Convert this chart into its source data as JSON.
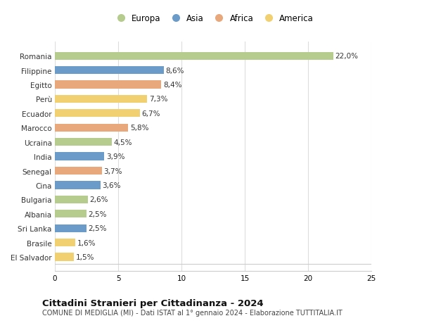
{
  "countries": [
    "Romania",
    "Filippine",
    "Egitto",
    "Perù",
    "Ecuador",
    "Marocco",
    "Ucraina",
    "India",
    "Senegal",
    "Cina",
    "Bulgaria",
    "Albania",
    "Sri Lanka",
    "Brasile",
    "El Salvador"
  ],
  "values": [
    22.0,
    8.6,
    8.4,
    7.3,
    6.7,
    5.8,
    4.5,
    3.9,
    3.7,
    3.6,
    2.6,
    2.5,
    2.5,
    1.6,
    1.5
  ],
  "labels": [
    "22,0%",
    "8,6%",
    "8,4%",
    "7,3%",
    "6,7%",
    "5,8%",
    "4,5%",
    "3,9%",
    "3,7%",
    "3,6%",
    "2,6%",
    "2,5%",
    "2,5%",
    "1,6%",
    "1,5%"
  ],
  "continents": [
    "Europa",
    "Asia",
    "Africa",
    "America",
    "America",
    "Africa",
    "Europa",
    "Asia",
    "Africa",
    "Asia",
    "Europa",
    "Europa",
    "Asia",
    "America",
    "America"
  ],
  "colors": {
    "Europa": "#b5cc8e",
    "Asia": "#6b9bc9",
    "Africa": "#e8a87c",
    "America": "#f0d070"
  },
  "legend_order": [
    "Europa",
    "Asia",
    "Africa",
    "America"
  ],
  "xlim": [
    0,
    25
  ],
  "xticks": [
    0,
    5,
    10,
    15,
    20,
    25
  ],
  "title": "Cittadini Stranieri per Cittadinanza - 2024",
  "subtitle": "COMUNE DI MEDIGLIA (MI) - Dati ISTAT al 1° gennaio 2024 - Elaborazione TUTTITALIA.IT",
  "bg_color": "#ffffff",
  "bar_height": 0.55,
  "grid_color": "#dddddd",
  "label_fontsize": 7.5,
  "tick_fontsize": 7.5,
  "title_fontsize": 9.5,
  "subtitle_fontsize": 7,
  "legend_fontsize": 8.5
}
